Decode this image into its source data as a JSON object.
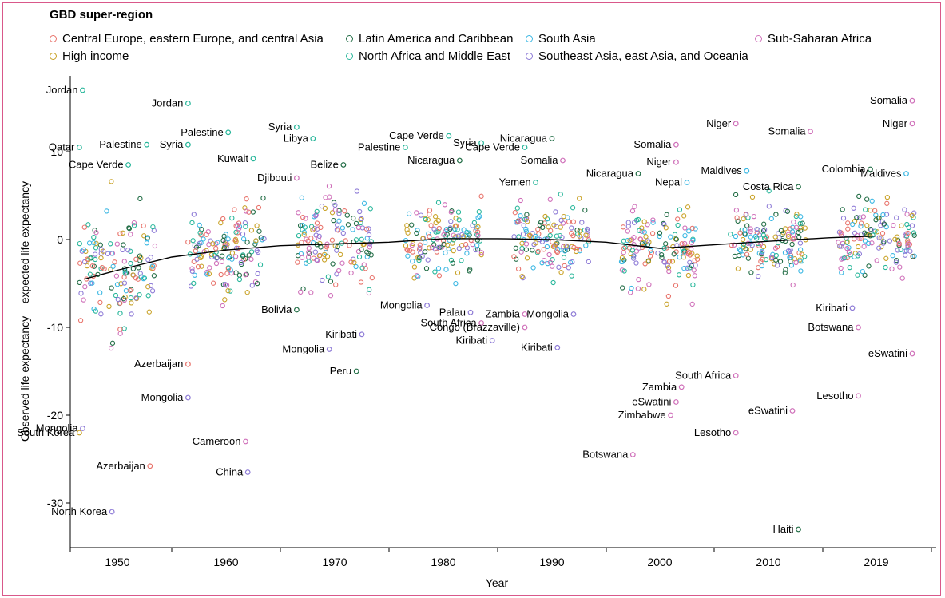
{
  "legend": {
    "title": "GBD super-region",
    "items": [
      {
        "label": "Central Europe, eastern Europe, and central Asia",
        "color": "#e8736b"
      },
      {
        "label": "High income",
        "color": "#c9a227"
      },
      {
        "label": "Latin America and Caribbean",
        "color": "#1f6b43"
      },
      {
        "label": "North Africa and Middle East",
        "color": "#27b69a"
      },
      {
        "label": "South Asia",
        "color": "#3ab7e3"
      },
      {
        "label": "Southeast Asia, east Asia, and Oceania",
        "color": "#8d7ad6"
      },
      {
        "label": "Sub-Saharan Africa",
        "color": "#cf6fb9"
      }
    ]
  },
  "chart_data": {
    "type": "scatter",
    "xlabel": "Year",
    "ylabel": "Observed life expectancy – expected life expectancy",
    "categories": [
      "1950",
      "1960",
      "1970",
      "1980",
      "1990",
      "2000",
      "2010",
      "2019"
    ],
    "ylim": [
      -35,
      18
    ],
    "yticks": [
      10,
      0,
      -10,
      -20,
      -30
    ],
    "grid": false,
    "trend_line": {
      "x": [
        1947,
        1950,
        1955,
        1960,
        1965,
        1970,
        1975,
        1980,
        1985,
        1990,
        1995,
        2000,
        2005,
        2010,
        2015,
        2019
      ],
      "y": [
        -4.5,
        -3.5,
        -2.0,
        -1.2,
        -0.7,
        -0.5,
        -0.3,
        0.1,
        0.1,
        0.0,
        -0.3,
        -1.0,
        -0.6,
        -0.2,
        0.2,
        0.4
      ]
    },
    "labeled_points": [
      {
        "label": "Jordan",
        "x": 1946.8,
        "y": 17.0,
        "region": 3
      },
      {
        "label": "Qatar",
        "x": 1946.5,
        "y": 10.5,
        "region": 3
      },
      {
        "label": "Palestine",
        "x": 1952.7,
        "y": 10.8,
        "region": 3
      },
      {
        "label": "Cape Verde",
        "x": 1951.0,
        "y": 8.5,
        "region": 3
      },
      {
        "label": "Mongolia",
        "x": 1946.8,
        "y": -21.5,
        "region": 5
      },
      {
        "label": "South Korea",
        "x": 1946.5,
        "y": -22.0,
        "region": 1
      },
      {
        "label": "Azerbaijan",
        "x": 1953.0,
        "y": -25.8,
        "region": 0
      },
      {
        "label": "North Korea",
        "x": 1949.5,
        "y": -31.0,
        "region": 5
      },
      {
        "label": "Jordan",
        "x": 1956.5,
        "y": 15.5,
        "region": 3
      },
      {
        "label": "Palestine",
        "x": 1960.2,
        "y": 12.2,
        "region": 3
      },
      {
        "label": "Syria",
        "x": 1956.5,
        "y": 10.8,
        "region": 3
      },
      {
        "label": "Kuwait",
        "x": 1962.5,
        "y": 9.2,
        "region": 3
      },
      {
        "label": "Azerbaijan",
        "x": 1956.5,
        "y": -14.2,
        "region": 0
      },
      {
        "label": "Mongolia",
        "x": 1956.5,
        "y": -18.0,
        "region": 5
      },
      {
        "label": "Cameroon",
        "x": 1961.8,
        "y": -23.0,
        "region": 6
      },
      {
        "label": "China",
        "x": 1962.0,
        "y": -26.5,
        "region": 5
      },
      {
        "label": "Syria",
        "x": 1966.5,
        "y": 12.8,
        "region": 3
      },
      {
        "label": "Libya",
        "x": 1968.0,
        "y": 11.5,
        "region": 3
      },
      {
        "label": "Belize",
        "x": 1970.8,
        "y": 8.5,
        "region": 2
      },
      {
        "label": "Djibouti",
        "x": 1966.5,
        "y": 7.0,
        "region": 6
      },
      {
        "label": "Bolivia",
        "x": 1966.5,
        "y": -8.0,
        "region": 2
      },
      {
        "label": "Kiribati",
        "x": 1972.5,
        "y": -10.8,
        "region": 5
      },
      {
        "label": "Mongolia",
        "x": 1969.5,
        "y": -12.5,
        "region": 5
      },
      {
        "label": "Peru",
        "x": 1972.0,
        "y": -15.0,
        "region": 2
      },
      {
        "label": "Cape Verde",
        "x": 1980.5,
        "y": 11.8,
        "region": 3
      },
      {
        "label": "Syria",
        "x": 1983.5,
        "y": 11.0,
        "region": 3
      },
      {
        "label": "Palestine",
        "x": 1976.5,
        "y": 10.5,
        "region": 3
      },
      {
        "label": "Nicaragua",
        "x": 1981.5,
        "y": 9.0,
        "region": 2
      },
      {
        "label": "Mongolia",
        "x": 1978.5,
        "y": -7.5,
        "region": 5
      },
      {
        "label": "Palau",
        "x": 1982.5,
        "y": -8.3,
        "region": 5
      },
      {
        "label": "South Africa",
        "x": 1983.5,
        "y": -9.5,
        "region": 6
      },
      {
        "label": "Kiribati",
        "x": 1984.5,
        "y": -11.5,
        "region": 5
      },
      {
        "label": "Nicaragua",
        "x": 1990.0,
        "y": 11.5,
        "region": 2
      },
      {
        "label": "Cape Verde",
        "x": 1987.5,
        "y": 10.5,
        "region": 3
      },
      {
        "label": "Somalia",
        "x": 1991.0,
        "y": 9.0,
        "region": 6
      },
      {
        "label": "Yemen",
        "x": 1988.5,
        "y": 6.5,
        "region": 3
      },
      {
        "label": "Zambia",
        "x": 1987.5,
        "y": -8.5,
        "region": 6
      },
      {
        "label": "Mongolia",
        "x": 1992.0,
        "y": -8.5,
        "region": 5
      },
      {
        "label": "Congo (Brazzaville)",
        "x": 1987.5,
        "y": -10.0,
        "region": 6
      },
      {
        "label": "Kiribati",
        "x": 1990.5,
        "y": -12.3,
        "region": 5
      },
      {
        "label": "Somalia",
        "x": 2001.5,
        "y": 10.8,
        "region": 6
      },
      {
        "label": "Niger",
        "x": 2001.5,
        "y": 8.8,
        "region": 6
      },
      {
        "label": "Nicaragua",
        "x": 1998.0,
        "y": 7.5,
        "region": 2
      },
      {
        "label": "Nepal",
        "x": 2002.5,
        "y": 6.5,
        "region": 4
      },
      {
        "label": "Zambia",
        "x": 2002.0,
        "y": -16.8,
        "region": 6
      },
      {
        "label": "eSwatini",
        "x": 2001.5,
        "y": -18.5,
        "region": 6
      },
      {
        "label": "Zimbabwe",
        "x": 2001.0,
        "y": -20.0,
        "region": 6
      },
      {
        "label": "Botswana",
        "x": 1997.5,
        "y": -24.5,
        "region": 6
      },
      {
        "label": "Niger",
        "x": 2007.0,
        "y": 13.2,
        "region": 6
      },
      {
        "label": "Somalia",
        "x": 2013.5,
        "y": 12.3,
        "region": 6
      },
      {
        "label": "Maldives",
        "x": 2008.0,
        "y": 7.8,
        "region": 4
      },
      {
        "label": "Costa Rica",
        "x": 2012.5,
        "y": 6.0,
        "region": 2
      },
      {
        "label": "South Africa",
        "x": 2007.0,
        "y": -15.5,
        "region": 6
      },
      {
        "label": "Lesotho",
        "x": 2007.0,
        "y": -22.0,
        "region": 6
      },
      {
        "label": "eSwatini",
        "x": 2012.0,
        "y": -19.5,
        "region": 6
      },
      {
        "label": "Haiti",
        "x": 2012.5,
        "y": -33.0,
        "region": 2
      },
      {
        "label": "Somalia",
        "x": 2022.0,
        "y": 15.8,
        "region": 6
      },
      {
        "label": "Niger",
        "x": 2022.0,
        "y": 13.2,
        "region": 6
      },
      {
        "label": "Colombia",
        "x": 2018.5,
        "y": 8.0,
        "region": 2
      },
      {
        "label": "Maldives",
        "x": 2021.5,
        "y": 7.5,
        "region": 4
      },
      {
        "label": "Kiribati",
        "x": 2017.0,
        "y": -7.8,
        "region": 5
      },
      {
        "label": "Botswana",
        "x": 2017.5,
        "y": -10.0,
        "region": 6
      },
      {
        "label": "eSwatini",
        "x": 2022.0,
        "y": -13.0,
        "region": 6
      },
      {
        "label": "Lesotho",
        "x": 2017.5,
        "y": -17.8,
        "region": 6
      }
    ]
  }
}
